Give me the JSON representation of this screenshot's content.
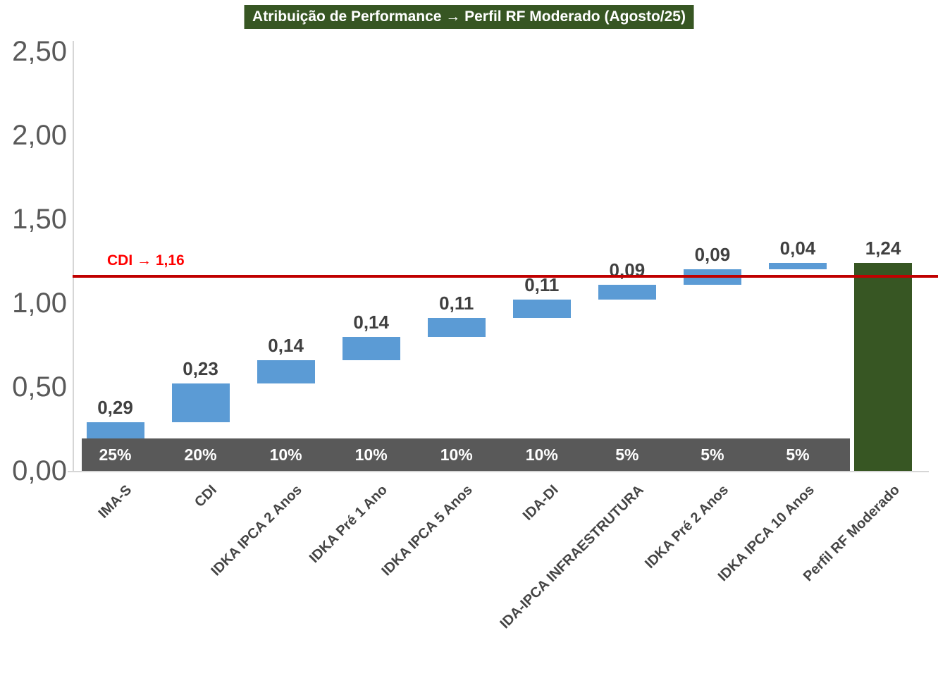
{
  "title": {
    "text": "Atribuição de Performance → Perfil RF Moderado (Agosto/25)",
    "bg_color": "#375623",
    "text_color": "#FFFFFF"
  },
  "reference_line": {
    "label": "CDI → 1,16",
    "value": 1.16,
    "line_color": "#C00000",
    "label_color": "#FF0000"
  },
  "colors": {
    "component_bar": "#5B9BD5",
    "total_bar": "#375623",
    "weight_band": "#595959",
    "weight_text": "#FFFFFF",
    "value_label": "#404040",
    "axis_text": "#595959",
    "x_label_text": "#444444",
    "axis_line": "#D6D6D6"
  },
  "chart_data": {
    "type": "bar",
    "subtype": "waterfall",
    "title": "Atribuição de Performance → Perfil RF Moderado (Agosto/25)",
    "xlabel": "",
    "ylabel": "",
    "ylim": [
      0,
      2.5
    ],
    "ytick_interval": 0.5,
    "grid": false,
    "legend": false,
    "value_format": "comma-decimal",
    "yticks": [
      {
        "value": 0.0,
        "label": "0,00"
      },
      {
        "value": 0.5,
        "label": "0,50"
      },
      {
        "value": 1.0,
        "label": "1,00"
      },
      {
        "value": 1.5,
        "label": "1,50"
      },
      {
        "value": 2.0,
        "label": "2,00"
      },
      {
        "value": 2.5,
        "label": "2,50"
      }
    ],
    "reference_line": {
      "label": "CDI → 1,16",
      "value": 1.16
    },
    "bars": [
      {
        "category": "IMA-S",
        "weight_label": "25%",
        "value": 0.29,
        "value_label": "0,29",
        "start": 0.0,
        "end": 0.29,
        "role": "component"
      },
      {
        "category": "CDI",
        "weight_label": "20%",
        "value": 0.23,
        "value_label": "0,23",
        "start": 0.29,
        "end": 0.52,
        "role": "component"
      },
      {
        "category": "IDKA IPCA 2 Anos",
        "weight_label": "10%",
        "value": 0.14,
        "value_label": "0,14",
        "start": 0.52,
        "end": 0.66,
        "role": "component"
      },
      {
        "category": "IDKA Pré 1 Ano",
        "weight_label": "10%",
        "value": 0.14,
        "value_label": "0,14",
        "start": 0.66,
        "end": 0.8,
        "role": "component"
      },
      {
        "category": "IDKA IPCA 5 Anos",
        "weight_label": "10%",
        "value": 0.11,
        "value_label": "0,11",
        "start": 0.8,
        "end": 0.91,
        "role": "component"
      },
      {
        "category": "IDA-DI",
        "weight_label": "10%",
        "value": 0.11,
        "value_label": "0,11",
        "start": 0.91,
        "end": 1.02,
        "role": "component"
      },
      {
        "category": "IDA-IPCA INFRAESTRUTURA",
        "weight_label": "5%",
        "value": 0.09,
        "value_label": "0,09",
        "start": 1.02,
        "end": 1.11,
        "role": "component"
      },
      {
        "category": "IDKA Pré 2 Anos",
        "weight_label": "5%",
        "value": 0.09,
        "value_label": "0,09",
        "start": 1.11,
        "end": 1.2,
        "role": "component"
      },
      {
        "category": "IDKA IPCA 10 Anos",
        "weight_label": "5%",
        "value": 0.04,
        "value_label": "0,04",
        "start": 1.2,
        "end": 1.24,
        "role": "component"
      },
      {
        "category": "Perfil RF Moderado",
        "weight_label": null,
        "value": 1.24,
        "value_label": "1,24",
        "start": 0.0,
        "end": 1.24,
        "role": "total"
      }
    ]
  }
}
